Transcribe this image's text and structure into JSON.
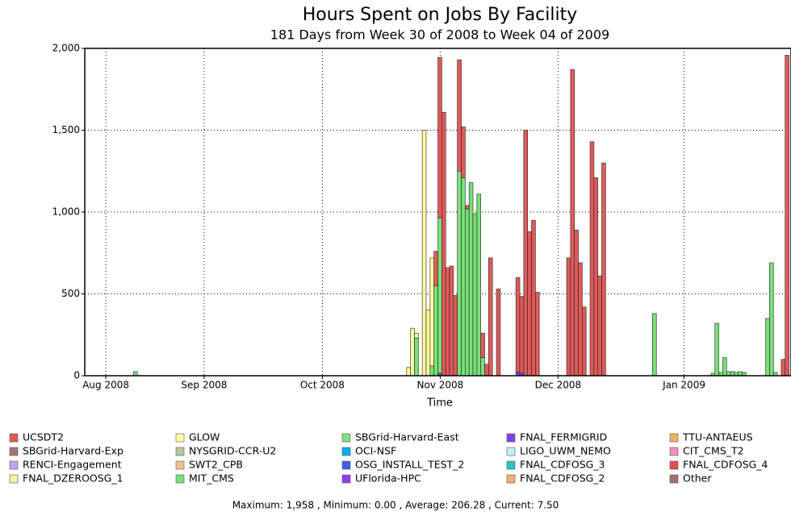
{
  "chart_data": {
    "type": "bar",
    "stacked": true,
    "title": "Hours Spent on Jobs By Facility",
    "subtitle": "181 Days from Week 30 of 2008 to Week 04 of 2009",
    "x_label": "Time",
    "footer": "Maximum: 1,958 , Minimum: 0.00 , Average: 206.28 , Current: 7.50",
    "grid": true,
    "xlim": [
      0,
      181
    ],
    "xticks": [
      {
        "value": 5.4,
        "label": "Aug 2008"
      },
      {
        "value": 30.6,
        "label": "Sep 2008"
      },
      {
        "value": 60.9,
        "label": "Oct 2008"
      },
      {
        "value": 91.1,
        "label": "Nov 2008"
      },
      {
        "value": 121.3,
        "label": "Dec 2008"
      },
      {
        "value": 153.6,
        "label": "Jan 2009"
      }
    ],
    "ylim": [
      0,
      2000
    ],
    "yticks": [
      0,
      500,
      {
        "value": 1000,
        "label": "1,000"
      },
      {
        "value": 1500,
        "label": "1,500"
      },
      {
        "value": 2000,
        "label": "2,000"
      }
    ],
    "x": [
      13,
      83,
      84,
      85,
      87,
      88,
      89,
      90,
      91,
      92,
      93,
      94,
      95,
      96,
      97,
      98,
      99,
      100,
      101,
      102,
      103,
      104,
      106,
      111,
      112,
      113,
      114,
      115,
      116,
      124,
      125,
      126,
      127,
      128,
      130,
      131,
      132,
      133,
      146,
      161,
      162,
      163,
      164,
      165,
      166,
      167,
      168,
      169,
      175,
      176,
      177,
      179,
      180
    ],
    "series": [
      {
        "name": "UCSDT2",
        "color": "#e05a5a",
        "values": [
          0,
          0,
          0,
          0,
          0,
          0,
          0,
          210,
          980,
          1610,
          660,
          670,
          490,
          680,
          310,
          20,
          0,
          0,
          0,
          150,
          70,
          720,
          530,
          580,
          470,
          1500,
          880,
          950,
          510,
          720,
          1870,
          890,
          690,
          420,
          1430,
          1210,
          610,
          1300,
          0,
          0,
          0,
          0,
          0,
          0,
          0,
          0,
          0,
          0,
          0,
          0,
          0,
          100,
          1958
        ]
      },
      {
        "name": "SBGrid-Harvard-Exp",
        "color": "#a07878"
      },
      {
        "name": "RENCI-Engagement",
        "color": "#c8a0f0"
      },
      {
        "name": "FNAL_DZEROOSG_1",
        "color": "#fff0a0"
      },
      {
        "name": "GLOW",
        "color": "#fff8a0",
        "values": [
          0,
          50,
          290,
          30,
          1500,
          400,
          660,
          0,
          0,
          0,
          0,
          0,
          0,
          0,
          0,
          0,
          0,
          0,
          0,
          0,
          0,
          0,
          0,
          0,
          0,
          0,
          0,
          0,
          0,
          0,
          0,
          0,
          0,
          0,
          0,
          0,
          0,
          0,
          0,
          0,
          0,
          0,
          0,
          0,
          0,
          0,
          0,
          0,
          0,
          0,
          0,
          0,
          0
        ]
      },
      {
        "name": "NYSGRID-CCR-U2",
        "color": "#b8c8a0"
      },
      {
        "name": "SWT2_CPB",
        "color": "#f0c090"
      },
      {
        "name": "MIT_CMS",
        "color": "#78e078",
        "values": [
          25,
          0,
          0,
          230,
          0,
          0,
          60,
          550,
          950,
          0,
          0,
          0,
          0,
          1250,
          1210,
          1020,
          1180,
          990,
          1110,
          110,
          0,
          0,
          0,
          0,
          0,
          0,
          0,
          0,
          0,
          0,
          0,
          0,
          0,
          0,
          0,
          0,
          0,
          0,
          380,
          15,
          320,
          20,
          110,
          25,
          25,
          20,
          25,
          20,
          350,
          690,
          20,
          0,
          0
        ]
      },
      {
        "name": "SBGrid-Harvard-East",
        "color": "#80e080"
      },
      {
        "name": "OCI-NSF",
        "color": "#00b0f0"
      },
      {
        "name": "OSG_INSTALL_TEST_2",
        "color": "#4060f0"
      },
      {
        "name": "UFlorida-HPC",
        "color": "#9040f0"
      },
      {
        "name": "FNAL_FERMIGRID",
        "color": "#8040f0",
        "values": [
          0,
          0,
          0,
          0,
          0,
          0,
          0,
          0,
          15,
          0,
          0,
          0,
          0,
          0,
          0,
          0,
          0,
          0,
          0,
          0,
          0,
          0,
          0,
          20,
          15,
          0,
          0,
          0,
          0,
          0,
          0,
          0,
          0,
          0,
          0,
          0,
          0,
          0,
          0,
          0,
          0,
          0,
          0,
          0,
          0,
          0,
          0,
          0,
          0,
          0,
          0,
          0,
          0
        ]
      },
      {
        "name": "LIGO_UWM_NEMO",
        "color": "#c0f0f0"
      },
      {
        "name": "FNAL_CDFOSG_3",
        "color": "#30c0c0"
      },
      {
        "name": "FNAL_CDFOSG_2",
        "color": "#f0b070"
      },
      {
        "name": "TTU-ANTAEUS",
        "color": "#f0b060"
      },
      {
        "name": "CIT_CMS_T2",
        "color": "#f090c0"
      },
      {
        "name": "FNAL_CDFOSG_4",
        "color": "#e05050"
      },
      {
        "name": "Other",
        "color": "#a07070"
      }
    ]
  }
}
